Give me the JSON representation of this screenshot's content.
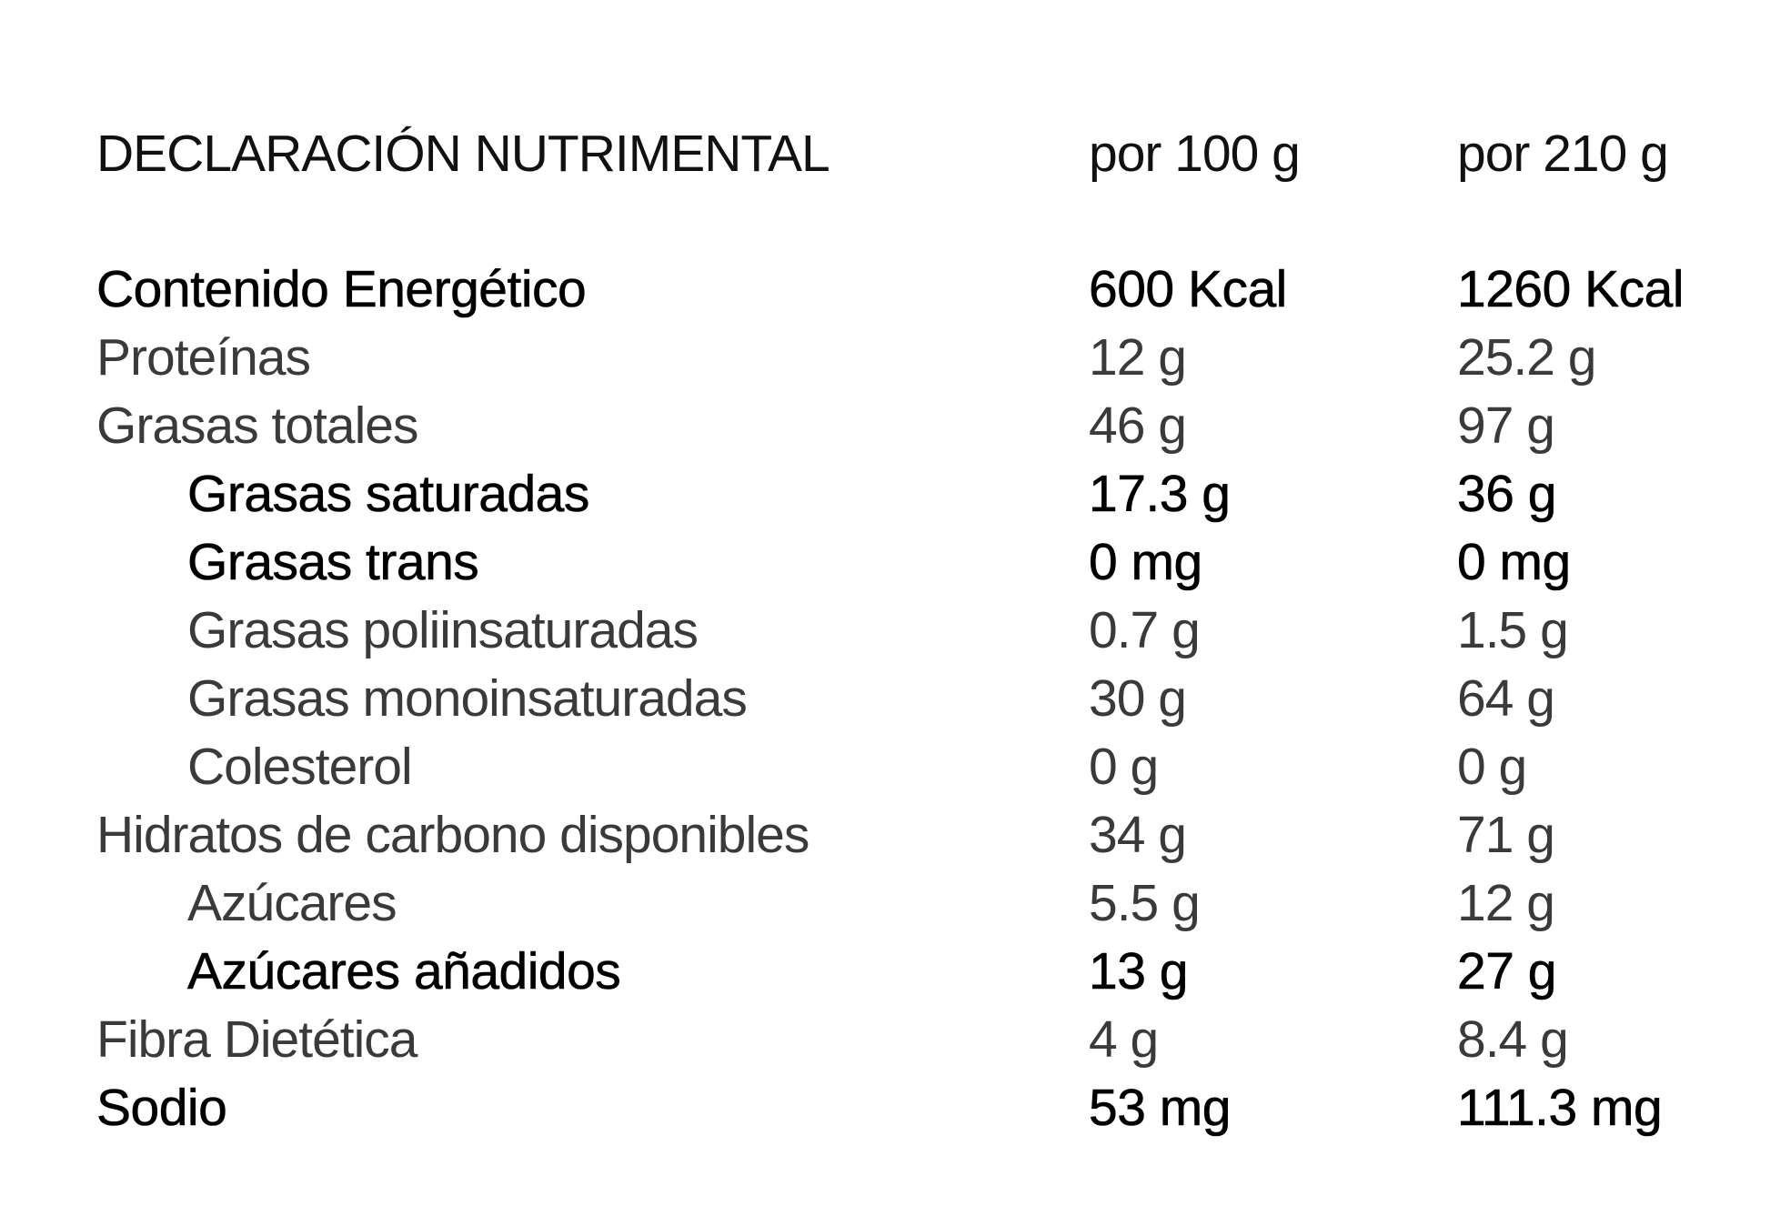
{
  "header": {
    "title": "DECLARACIÓN NUTRIMENTAL",
    "col1": "por 100 g",
    "col2": "por 210 g"
  },
  "rows": [
    {
      "label": "Contenido Energético",
      "per100": "600 Kcal",
      "per210": "1260 Kcal",
      "indent": false,
      "weight": "medium"
    },
    {
      "label": "Proteínas",
      "per100": "12 g",
      "per210": "25.2 g",
      "indent": false,
      "weight": "light"
    },
    {
      "label": "Grasas totales",
      "per100": "46 g",
      "per210": "97 g",
      "indent": false,
      "weight": "light"
    },
    {
      "label": "Grasas saturadas",
      "per100": "17.3 g",
      "per210": "36 g",
      "indent": true,
      "weight": "medium"
    },
    {
      "label": "Grasas trans",
      "per100": "0 mg",
      "per210": "0 mg",
      "indent": true,
      "weight": "medium"
    },
    {
      "label": "Grasas poliinsaturadas",
      "per100": "0.7 g",
      "per210": "1.5 g",
      "indent": true,
      "weight": "light"
    },
    {
      "label": "Grasas monoinsaturadas",
      "per100": "30 g",
      "per210": "64 g",
      "indent": true,
      "weight": "light"
    },
    {
      "label": "Colesterol",
      "per100": "0 g",
      "per210": "0 g",
      "indent": true,
      "weight": "light"
    },
    {
      "label": "Hidratos de carbono disponibles",
      "per100": "34 g",
      "per210": "71 g",
      "indent": false,
      "weight": "light"
    },
    {
      "label": "Azúcares",
      "per100": "5.5 g",
      "per210": "12 g",
      "indent": true,
      "weight": "light"
    },
    {
      "label": "Azúcares añadidos",
      "per100": "13 g",
      "per210": "27 g",
      "indent": true,
      "weight": "medium"
    },
    {
      "label": "Fibra Dietética",
      "per100": "4 g",
      "per210": "8.4 g",
      "indent": false,
      "weight": "light"
    },
    {
      "label": "Sodio",
      "per100": "53 mg",
      "per210": "111.3 mg",
      "indent": false,
      "weight": "medium"
    }
  ]
}
